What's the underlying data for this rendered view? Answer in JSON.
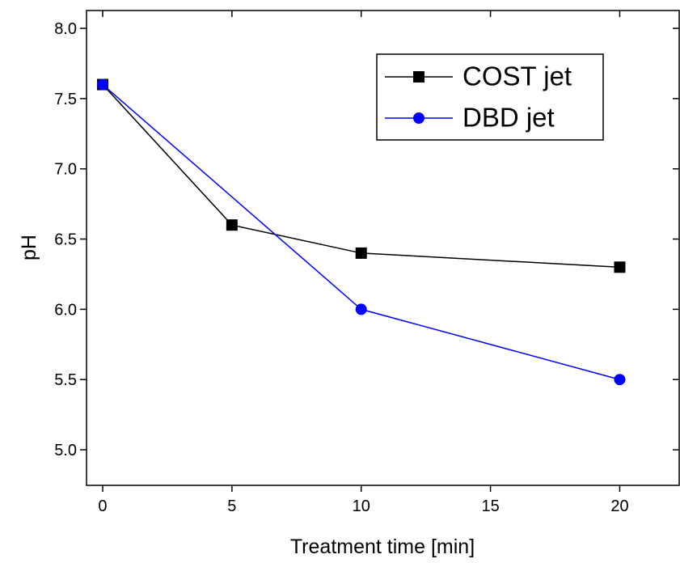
{
  "chart_data": {
    "type": "line",
    "x_label": "Treatment time [min]",
    "y_label": "pH",
    "xlim": [
      -0.625,
      22.3
    ],
    "ylim": [
      4.747,
      8.127
    ],
    "xticks": [
      0,
      5,
      10,
      15,
      20
    ],
    "yticks": [
      {
        "value": 5,
        "label": "5.0"
      },
      {
        "value": 5.5,
        "label": "5.5"
      },
      {
        "value": 6,
        "label": "6.0"
      },
      {
        "value": 6.5,
        "label": "6.5"
      },
      {
        "value": 7,
        "label": "7.0"
      },
      {
        "value": 7.5,
        "label": "7.5"
      },
      {
        "value": 8,
        "label": "8.0"
      }
    ],
    "legend": "upper right",
    "series": [
      {
        "name": "COST jet",
        "color": "#000000",
        "marker": "square",
        "x": [
          0,
          5,
          10,
          20
        ],
        "values": [
          7.6,
          6.6,
          6.4,
          6.3
        ]
      },
      {
        "name": "DBD jet",
        "color": "#0000ff",
        "marker": "circle",
        "x": [
          0,
          10,
          20
        ],
        "values": [
          7.6,
          6.0,
          5.5
        ]
      }
    ]
  }
}
